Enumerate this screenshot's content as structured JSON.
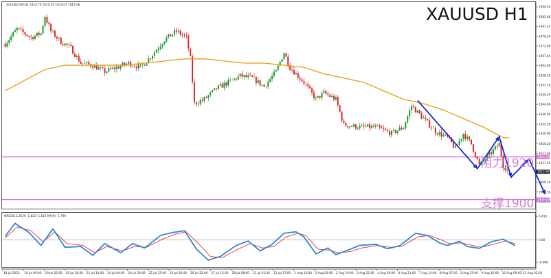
{
  "header": {
    "info": "XAUUSD-VIP,H1   1914.70  1915.55  1913.07  1913.06",
    "big_title": "XAUUSD H1"
  },
  "annotations": {
    "resistance": "阻力1920",
    "support": "支撑1900"
  },
  "indicator_header": "MACD(12,26,9) -1.823  -1.823   MA(9) -1.790",
  "colors": {
    "bull": "#1a9a2a",
    "bear": "#d62828",
    "ma": "#e8a21a",
    "level": "#d46bd6",
    "projection": "#1528c8",
    "macd_fast": "#2f86d6",
    "macd_signal": "#e23030"
  },
  "price_axis": {
    "ticks": [
      "1990.40",
      "1985.80",
      "1981.20",
      "1976.50",
      "1972.00",
      "1967.40",
      "1962.80",
      "1958.20",
      "1953.70",
      "1949.20",
      "1944.60",
      "1940.00",
      "1935.30",
      "1930.90",
      "1926.20",
      "1921.60",
      "1917.20",
      "1912.70",
      "1908.10",
      "1903.50",
      "1898.90"
    ],
    "current_price": "1913.06",
    "resistance_price": "1920.00",
    "support_price": "1900.00"
  },
  "macd_axis": {
    "ticks": [
      "6.433",
      "0.00",
      "-6.066"
    ]
  },
  "time_axis": {
    "labels": [
      "18 Jul 2023",
      "19 Jul 09:00",
      "19 Jul 02:00",
      "20 Jul 18:00",
      "21 Jul 10:00",
      "24 Jul 04:00",
      "24 Jul 20:00",
      "25 Jul 13:00",
      "26 Jul 06:00",
      "26 Jul 22:00",
      "27 Jul 15:00",
      "28 Jul 08:00",
      "31 Jul 01:00",
      "31 Jul 17:00",
      "1 Aug 10:00",
      "2 Aug 03:00",
      "2 Aug 19:00",
      "3 Aug 12:00",
      "4 Aug 05:00",
      "4 Aug 21:00",
      "7 Aug 14:00",
      "8 Aug 07:00",
      "8 Aug 23:00",
      "9 Aug 16:00",
      "10 Aug 09:00",
      "11 Aug 02:00"
    ]
  },
  "chart_data": {
    "type": "candlestick",
    "symbol": "XAUUSD",
    "timeframe": "H1",
    "ylim": [
      1897.0,
      1992.0
    ],
    "levels": [
      {
        "label": "阻力1920",
        "price": 1920
      },
      {
        "label": "支撑1900",
        "price": 1900
      }
    ],
    "anchors_close": [
      [
        0,
        1973
      ],
      [
        6,
        1980
      ],
      [
        13,
        1976
      ],
      [
        18,
        1978
      ],
      [
        20,
        1986
      ],
      [
        23,
        1979
      ],
      [
        28,
        1974
      ],
      [
        33,
        1971
      ],
      [
        38,
        1964
      ],
      [
        44,
        1963
      ],
      [
        50,
        1960
      ],
      [
        56,
        1962
      ],
      [
        62,
        1964
      ],
      [
        68,
        1962
      ],
      [
        74,
        1968
      ],
      [
        80,
        1975
      ],
      [
        86,
        1979
      ],
      [
        91,
        1976
      ],
      [
        93,
        1966
      ],
      [
        95,
        1945
      ],
      [
        100,
        1947
      ],
      [
        106,
        1952
      ],
      [
        112,
        1955
      ],
      [
        118,
        1958
      ],
      [
        124,
        1957
      ],
      [
        130,
        1953
      ],
      [
        136,
        1960
      ],
      [
        140,
        1969
      ],
      [
        143,
        1962
      ],
      [
        150,
        1955
      ],
      [
        156,
        1947
      ],
      [
        160,
        1950
      ],
      [
        166,
        1947
      ],
      [
        170,
        1935
      ],
      [
        178,
        1934
      ],
      [
        186,
        1934
      ],
      [
        194,
        1931
      ],
      [
        200,
        1934
      ],
      [
        204,
        1944
      ],
      [
        210,
        1938
      ],
      [
        216,
        1932
      ],
      [
        222,
        1929
      ],
      [
        226,
        1924
      ],
      [
        230,
        1931
      ],
      [
        234,
        1926
      ],
      [
        238,
        1916
      ],
      [
        244,
        1922
      ],
      [
        248,
        1926
      ],
      [
        250,
        1916
      ],
      [
        253,
        1913
      ]
    ],
    "ma_anchors": [
      [
        0,
        1951
      ],
      [
        10,
        1956
      ],
      [
        20,
        1961
      ],
      [
        30,
        1963
      ],
      [
        40,
        1963
      ],
      [
        50,
        1963
      ],
      [
        60,
        1963
      ],
      [
        70,
        1964
      ],
      [
        80,
        1965
      ],
      [
        90,
        1966
      ],
      [
        100,
        1966
      ],
      [
        110,
        1965
      ],
      [
        120,
        1964
      ],
      [
        130,
        1964
      ],
      [
        140,
        1963
      ],
      [
        150,
        1962
      ],
      [
        160,
        1959
      ],
      [
        170,
        1957
      ],
      [
        180,
        1955
      ],
      [
        190,
        1951
      ],
      [
        200,
        1947
      ],
      [
        210,
        1945
      ],
      [
        220,
        1942
      ],
      [
        230,
        1938
      ],
      [
        240,
        1934
      ],
      [
        250,
        1929
      ]
    ],
    "projection": [
      {
        "bar": 207,
        "price": 1946.5
      },
      {
        "bar": 237,
        "price": 1914.5
      },
      {
        "bar": 248,
        "price": 1929.5
      },
      {
        "bar": 254,
        "price": 1910.5
      },
      {
        "bar": 263,
        "price": 1919.0
      },
      {
        "bar": 271,
        "price": 1902.5
      }
    ],
    "macd": {
      "ylim": [
        -7,
        7
      ],
      "fast_anchors": [
        [
          0,
          1.0
        ],
        [
          5,
          4.5
        ],
        [
          12,
          2.0
        ],
        [
          18,
          -1.5
        ],
        [
          24,
          3.0
        ],
        [
          30,
          -2.0
        ],
        [
          38,
          -1.8
        ],
        [
          44,
          -4.2
        ],
        [
          50,
          -1.0
        ],
        [
          58,
          -3.5
        ],
        [
          64,
          -1.0
        ],
        [
          70,
          -2.2
        ],
        [
          78,
          1.2
        ],
        [
          84,
          2.0
        ],
        [
          90,
          2.5
        ],
        [
          96,
          -2.5
        ],
        [
          102,
          -5.5
        ],
        [
          108,
          -4.5
        ],
        [
          116,
          -1.5
        ],
        [
          122,
          -0.3
        ],
        [
          128,
          -3.0
        ],
        [
          134,
          -1.2
        ],
        [
          140,
          1.8
        ],
        [
          146,
          2.2
        ],
        [
          150,
          0.8
        ],
        [
          156,
          -3.8
        ],
        [
          162,
          -2.2
        ],
        [
          166,
          -4.0
        ],
        [
          172,
          -2.8
        ],
        [
          178,
          -1.5
        ],
        [
          186,
          -1.2
        ],
        [
          192,
          -2.4
        ],
        [
          198,
          -1.6
        ],
        [
          206,
          1.8
        ],
        [
          212,
          1.2
        ],
        [
          218,
          -0.8
        ],
        [
          222,
          -1.5
        ],
        [
          228,
          -0.4
        ],
        [
          232,
          -1.8
        ],
        [
          238,
          -2.3
        ],
        [
          244,
          -0.5
        ],
        [
          250,
          0.2
        ],
        [
          256,
          -1.6
        ]
      ],
      "signal_anchors": [
        [
          0,
          0.5
        ],
        [
          6,
          3.5
        ],
        [
          13,
          2.5
        ],
        [
          19,
          -0.5
        ],
        [
          25,
          2.2
        ],
        [
          31,
          -1.0
        ],
        [
          39,
          -1.5
        ],
        [
          45,
          -3.5
        ],
        [
          51,
          -1.8
        ],
        [
          59,
          -3.0
        ],
        [
          65,
          -1.8
        ],
        [
          71,
          -2.0
        ],
        [
          79,
          0.2
        ],
        [
          85,
          1.5
        ],
        [
          91,
          2.2
        ],
        [
          97,
          -1.0
        ],
        [
          103,
          -4.5
        ],
        [
          109,
          -4.8
        ],
        [
          117,
          -2.5
        ],
        [
          123,
          -1.0
        ],
        [
          129,
          -2.2
        ],
        [
          135,
          -1.8
        ],
        [
          141,
          0.8
        ],
        [
          147,
          1.8
        ],
        [
          151,
          1.2
        ],
        [
          157,
          -2.5
        ],
        [
          163,
          -2.8
        ],
        [
          167,
          -3.5
        ],
        [
          173,
          -3.2
        ],
        [
          179,
          -2.2
        ],
        [
          187,
          -1.5
        ],
        [
          193,
          -2.0
        ],
        [
          199,
          -1.8
        ],
        [
          207,
          0.8
        ],
        [
          213,
          1.2
        ],
        [
          219,
          0.0
        ],
        [
          223,
          -1.0
        ],
        [
          229,
          -0.8
        ],
        [
          233,
          -1.3
        ],
        [
          239,
          -2.0
        ],
        [
          245,
          -1.2
        ],
        [
          251,
          -0.3
        ],
        [
          256,
          -1.0
        ]
      ]
    }
  }
}
